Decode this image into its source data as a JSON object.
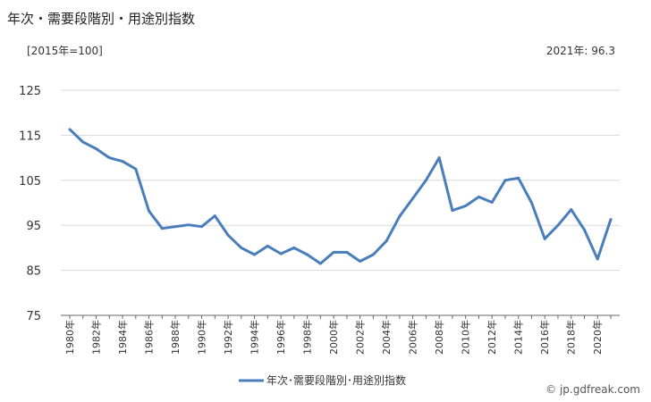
{
  "chart_title": "年次・需要段階別・用途別指数",
  "unit_label": "[2015年=100]",
  "latest_label": "2021年: 96.3",
  "watermark": "© jp.gdfreak.com",
  "colors": {
    "line": "#4a7ebb",
    "grid": "#d9d9d9",
    "axis": "#666666"
  },
  "chart_data": {
    "type": "line",
    "title": "年次・需要段階別・用途別指数",
    "x": [
      1980,
      1981,
      1982,
      1983,
      1984,
      1985,
      1986,
      1987,
      1988,
      1989,
      1990,
      1991,
      1992,
      1993,
      1994,
      1995,
      1996,
      1997,
      1998,
      1999,
      2000,
      2001,
      2002,
      2003,
      2004,
      2005,
      2006,
      2007,
      2008,
      2009,
      2010,
      2011,
      2012,
      2013,
      2014,
      2015,
      2016,
      2017,
      2018,
      2019,
      2020,
      2021
    ],
    "x_tick_labels": [
      "1980年",
      "1982年",
      "1984年",
      "1986年",
      "1988年",
      "1990年",
      "1992年",
      "1994年",
      "1996年",
      "1998年",
      "2000年",
      "2002年",
      "2004年",
      "2006年",
      "2008年",
      "2010年",
      "2012年",
      "2014年",
      "2016年",
      "2018年",
      "2020年"
    ],
    "series": [
      {
        "name": "年次･需要段階別･用途別指数",
        "values": [
          116.3,
          113.5,
          112.0,
          110.0,
          109.2,
          107.5,
          98.2,
          94.3,
          94.7,
          95.1,
          94.7,
          97.1,
          92.8,
          90.0,
          88.5,
          90.4,
          88.7,
          90.0,
          88.5,
          86.5,
          89.0,
          89.0,
          87.0,
          88.5,
          91.5,
          97.0,
          101.0,
          105.0,
          110.0,
          98.3,
          99.3,
          101.3,
          100.1,
          105.0,
          105.5,
          100.0,
          92.0,
          95.0,
          98.5,
          94.0,
          87.5,
          96.3
        ]
      }
    ],
    "y_ticks": [
      75,
      85,
      95,
      105,
      115,
      125
    ],
    "ylim": [
      75,
      125
    ],
    "xlabel": "",
    "ylabel": "",
    "grid": true,
    "legend_position": "bottom-center"
  }
}
